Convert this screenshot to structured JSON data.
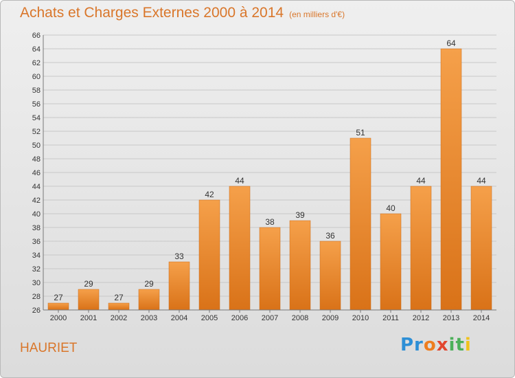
{
  "header": {
    "title": "Achats et Charges Externes 2000 à 2014",
    "unit": "(en milliers d'€)"
  },
  "footer": {
    "town": "HAURIET",
    "logo": [
      "Pr",
      "o",
      "x",
      "it",
      "i"
    ]
  },
  "colors": {
    "bar_top": "#f5a04a",
    "bar_bottom": "#d97218",
    "accent": "#d9762a",
    "grid": "#c8c8c8"
  },
  "chart_data": {
    "type": "bar",
    "title": "Achats et Charges Externes 2000 à 2014",
    "subtitle": "(en milliers d'€)",
    "categories": [
      "2000",
      "2001",
      "2002",
      "2003",
      "2004",
      "2005",
      "2006",
      "2007",
      "2008",
      "2009",
      "2010",
      "2011",
      "2012",
      "2013",
      "2014"
    ],
    "values": [
      27,
      29,
      27,
      29,
      33,
      42,
      44,
      38,
      39,
      36,
      51,
      40,
      44,
      64,
      44
    ],
    "xlabel": "",
    "ylabel": "",
    "ylim": [
      26,
      66
    ],
    "ytick_step": 2,
    "grid": true,
    "data_labels": true
  }
}
